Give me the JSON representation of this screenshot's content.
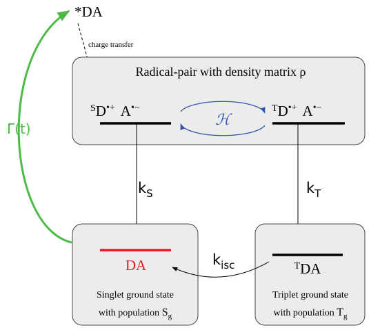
{
  "molecule": "*DA",
  "charge_transfer": "charge transfer",
  "radical_pair": {
    "title": "Radical-pair with density matrix ρ",
    "singlet": {
      "spin": "S",
      "donor": "D",
      "donor_charge": "•+",
      "acceptor": "A",
      "acceptor_charge": "•−"
    },
    "triplet": {
      "spin": "T",
      "donor": "D",
      "donor_charge": "•+",
      "acceptor": "A",
      "acceptor_charge": "•−"
    },
    "hamiltonian": "ℋ"
  },
  "rates": {
    "singlet": {
      "base": "k",
      "sub": "S"
    },
    "triplet": {
      "base": "k",
      "sub": "T"
    },
    "isc": {
      "base": "k",
      "sub": "isc"
    },
    "return": "Γ(t)"
  },
  "singlet_state": {
    "label": "DA",
    "line1": "Singlet ground state",
    "line2": "with population ",
    "symbol": "S",
    "sub": "g"
  },
  "triplet_state": {
    "spin": "T",
    "label": "DA",
    "line1": "Triplet ground state",
    "line2": "with population ",
    "symbol": "T",
    "sub": "g"
  }
}
